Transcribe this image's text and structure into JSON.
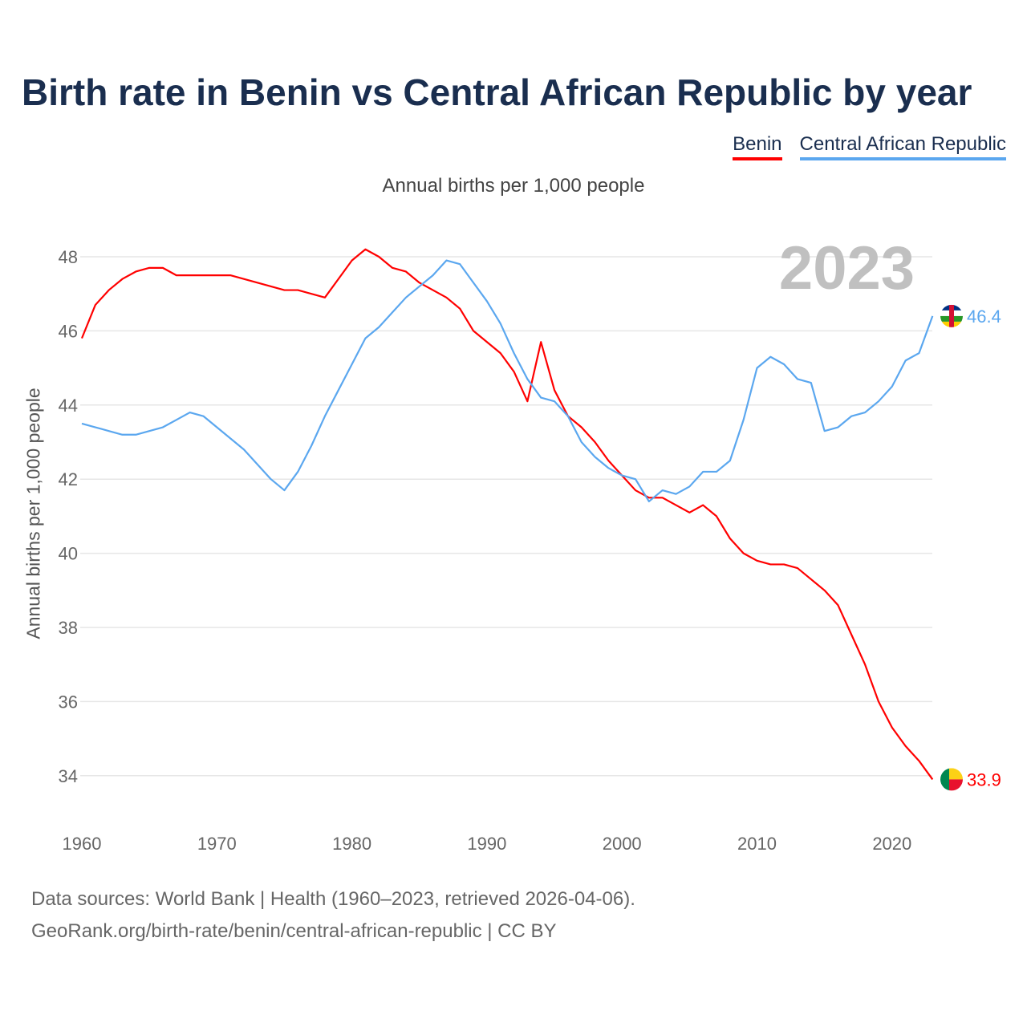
{
  "chart_data": {
    "type": "line",
    "title": "Birth rate in Benin vs Central African Republic by year",
    "subtitle": "Annual births per 1,000 people",
    "ylabel": "Annual births per 1,000 people",
    "xlabel": "",
    "year_label": "2023",
    "xlim": [
      1960,
      2023
    ],
    "ylim": [
      33,
      49
    ],
    "xticks": [
      1960,
      1970,
      1980,
      1990,
      2000,
      2010,
      2020
    ],
    "yticks": [
      34,
      36,
      38,
      40,
      42,
      44,
      46,
      48
    ],
    "x_start": 1960,
    "series": [
      {
        "name": "Benin",
        "color": "#ff0000",
        "end_label": "33.9",
        "values": [
          45.8,
          46.7,
          47.1,
          47.4,
          47.6,
          47.7,
          47.7,
          47.5,
          47.5,
          47.5,
          47.5,
          47.5,
          47.4,
          47.3,
          47.2,
          47.1,
          47.1,
          47.0,
          46.9,
          47.4,
          47.9,
          48.2,
          48.0,
          47.7,
          47.6,
          47.3,
          47.1,
          46.9,
          46.6,
          46.0,
          45.7,
          45.4,
          44.9,
          44.1,
          45.7,
          44.4,
          43.7,
          43.4,
          43.0,
          42.5,
          42.1,
          41.7,
          41.5,
          41.5,
          41.3,
          41.1,
          41.3,
          41.0,
          40.4,
          40.0,
          39.8,
          39.7,
          39.7,
          39.6,
          39.3,
          39.0,
          38.6,
          37.8,
          37.0,
          36.0,
          35.3,
          34.8,
          34.4,
          33.9
        ]
      },
      {
        "name": "Central African Republic",
        "color": "#5ba7ef",
        "end_label": "46.4",
        "values": [
          43.5,
          43.4,
          43.3,
          43.2,
          43.2,
          43.3,
          43.4,
          43.6,
          43.8,
          43.7,
          43.4,
          43.1,
          42.8,
          42.4,
          42.0,
          41.7,
          42.2,
          42.9,
          43.7,
          44.4,
          45.1,
          45.8,
          46.1,
          46.5,
          46.9,
          47.2,
          47.5,
          47.9,
          47.8,
          47.3,
          46.8,
          46.2,
          45.4,
          44.7,
          44.2,
          44.1,
          43.7,
          43.0,
          42.6,
          42.3,
          42.1,
          42.0,
          41.4,
          41.7,
          41.6,
          41.8,
          42.2,
          42.2,
          42.5,
          43.6,
          45.0,
          45.3,
          45.1,
          44.7,
          44.6,
          43.3,
          43.4,
          43.7,
          43.8,
          44.1,
          44.5,
          45.2,
          45.4,
          46.4
        ]
      }
    ],
    "legend_position": "top-right",
    "grid": true
  },
  "footer": {
    "line1": "Data sources: World Bank | Health (1960–2023, retrieved 2026-04-06).",
    "line2": "GeoRank.org/birth-rate/benin/central-african-republic | CC BY"
  }
}
